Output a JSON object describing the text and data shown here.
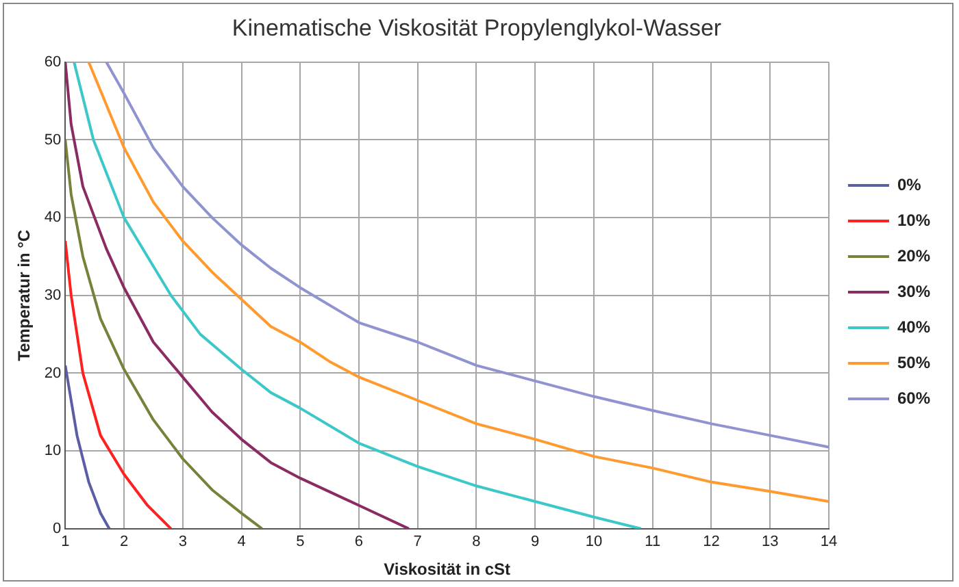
{
  "chart_data": {
    "type": "line",
    "title": "Kinematische Viskosität Propylenglykol-Wasser",
    "xlabel": "Viskosität in cSt",
    "ylabel": "Temperatur in °C",
    "xlim": [
      1,
      14
    ],
    "xticks": [
      1,
      2,
      3,
      4,
      5,
      6,
      7,
      8,
      9,
      10,
      11,
      12,
      13,
      14
    ],
    "ylim": [
      0,
      60
    ],
    "yticks": [
      0,
      10,
      20,
      30,
      40,
      50,
      60
    ],
    "grid": true,
    "legend": "right",
    "marker": "none",
    "line_style": "solid",
    "series": [
      {
        "name": "0%",
        "color": "#5b5ea6",
        "x": [
          1,
          1.2,
          1.4,
          1.6,
          1.75
        ],
        "values": [
          21,
          12,
          6,
          2,
          0
        ]
      },
      {
        "name": "10%",
        "color": "#ff2020",
        "x": [
          1,
          1.1,
          1.3,
          1.6,
          2,
          2.4,
          2.8
        ],
        "values": [
          37,
          30,
          20,
          12,
          7,
          3,
          0
        ]
      },
      {
        "name": "20%",
        "color": "#77813a",
        "x": [
          1,
          1.1,
          1.3,
          1.6,
          2,
          2.5,
          3,
          3.5,
          4,
          4.35
        ],
        "values": [
          50,
          43,
          35,
          27,
          20.5,
          14,
          9,
          5,
          2,
          0
        ]
      },
      {
        "name": "30%",
        "color": "#8b2b63",
        "x": [
          1,
          1.1,
          1.3,
          1.7,
          2,
          2.5,
          3,
          3.5,
          4,
          4.5,
          5,
          6,
          6.85
        ],
        "values": [
          60,
          52,
          44,
          36,
          31,
          24,
          19.5,
          15,
          11.5,
          8.5,
          6.5,
          3,
          0
        ]
      },
      {
        "name": "40%",
        "color": "#3cc8c8",
        "x": [
          1.15,
          1.48,
          2,
          2.4,
          2.8,
          3.3,
          4,
          4.5,
          5,
          6,
          7,
          8,
          9,
          10,
          10.8
        ],
        "values": [
          60,
          50,
          40,
          35,
          30,
          25,
          20.5,
          17.5,
          15.5,
          11,
          8,
          5.5,
          3.5,
          1.5,
          0
        ]
      },
      {
        "name": "50%",
        "color": "#ff9a2e",
        "x": [
          1.4,
          2,
          2.5,
          3,
          3.5,
          4,
          4.5,
          5,
          5.5,
          6,
          7,
          8,
          9,
          10,
          11,
          12,
          13,
          14
        ],
        "values": [
          60,
          49,
          42,
          37,
          33,
          29.5,
          26,
          24,
          21.5,
          19.5,
          16.5,
          13.5,
          11.5,
          9.3,
          7.8,
          6,
          4.8,
          3.5
        ]
      },
      {
        "name": "60%",
        "color": "#8f94d0",
        "x": [
          1.7,
          2,
          2.5,
          3,
          3.5,
          4,
          4.5,
          5,
          6,
          7,
          8,
          9,
          10,
          11,
          12,
          13,
          14
        ],
        "values": [
          60,
          56,
          49,
          44,
          40,
          36.5,
          33.5,
          31,
          26.5,
          24,
          21,
          19,
          17,
          15.2,
          13.5,
          12,
          10.5
        ]
      }
    ]
  }
}
